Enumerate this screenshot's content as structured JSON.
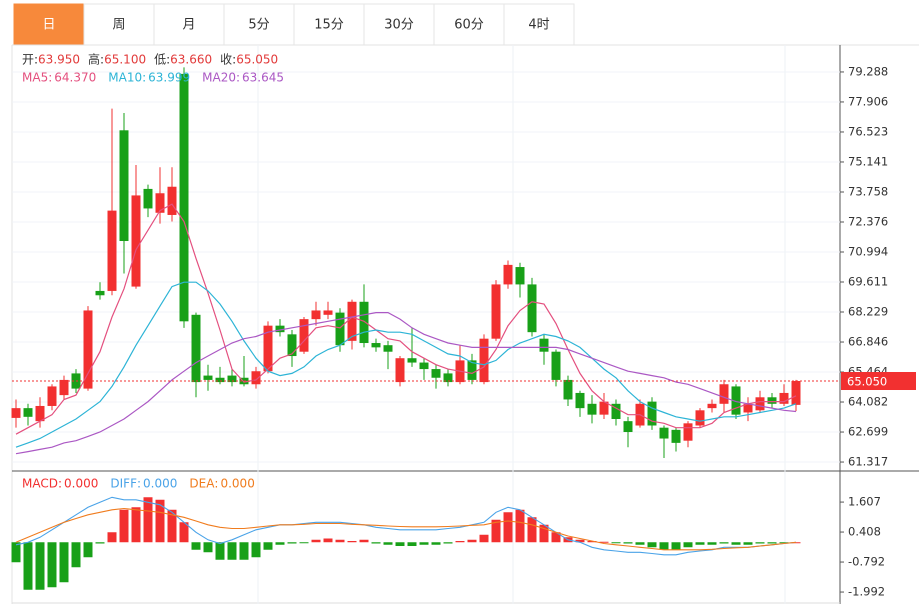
{
  "tabs": [
    "日",
    "周",
    "月",
    "5分",
    "15分",
    "30分",
    "60分",
    "4时"
  ],
  "chart_data": {
    "type": "candlestick",
    "header": [
      {
        "label": "开:",
        "value": "63.950"
      },
      {
        "label": "高:",
        "value": "65.100"
      },
      {
        "label": "低:",
        "value": "63.660"
      },
      {
        "label": "收:",
        "value": "65.050"
      }
    ],
    "up_color": "#f23030",
    "down_color": "#18a018",
    "open": [
      63.35,
      63.8,
      63.2,
      63.9,
      64.4,
      65.4,
      64.7,
      69.2,
      69.2,
      76.6,
      69.4,
      73.9,
      72.8,
      72.7,
      79.2,
      68.1,
      65.3,
      65.2,
      65.3,
      65.2,
      64.9,
      65.5,
      67.6,
      67.2,
      66.4,
      67.9,
      68.1,
      68.2,
      66.9,
      68.7,
      66.8,
      66.7,
      65.0,
      66.1,
      65.9,
      65.6,
      65.4,
      65.0,
      66.0,
      65.0,
      67.0,
      69.5,
      70.3,
      69.5,
      67.0,
      66.4,
      65.1,
      64.5,
      64.0,
      63.5,
      64.0,
      63.2,
      63.0,
      64.1,
      62.9,
      62.8,
      62.3,
      63.0,
      63.8,
      64.0,
      64.8,
      63.6,
      63.7,
      64.3,
      64.0,
      63.95
    ],
    "high": [
      64.2,
      64.0,
      64.3,
      64.9,
      65.3,
      65.6,
      68.5,
      69.6,
      77.6,
      77.4,
      75.0,
      74.1,
      74.9,
      74.9,
      79.5,
      68.2,
      65.8,
      65.7,
      65.6,
      66.2,
      65.7,
      67.8,
      67.9,
      67.4,
      68.0,
      68.7,
      68.7,
      68.4,
      68.8,
      69.5,
      67.0,
      66.9,
      66.2,
      67.5,
      66.1,
      65.8,
      65.6,
      66.7,
      66.3,
      67.2,
      69.7,
      70.6,
      70.5,
      69.8,
      67.2,
      66.5,
      65.3,
      64.6,
      64.4,
      64.5,
      64.2,
      63.4,
      64.2,
      64.3,
      63.0,
      62.9,
      63.2,
      63.8,
      64.2,
      65.1,
      64.9,
      64.3,
      64.6,
      64.5,
      64.9,
      65.1
    ],
    "low": [
      62.9,
      63.0,
      62.9,
      63.7,
      64.2,
      64.5,
      64.6,
      68.8,
      69.0,
      70.0,
      69.3,
      72.6,
      72.3,
      72.4,
      67.5,
      64.3,
      64.6,
      64.9,
      64.8,
      64.8,
      64.7,
      65.4,
      67.1,
      65.7,
      66.3,
      67.6,
      67.9,
      66.4,
      66.5,
      66.6,
      66.4,
      65.6,
      64.8,
      65.7,
      65.1,
      64.7,
      64.8,
      64.9,
      64.9,
      64.9,
      66.9,
      69.3,
      68.9,
      67.1,
      65.8,
      64.8,
      63.9,
      63.4,
      63.1,
      63.3,
      63.0,
      62.0,
      62.9,
      62.8,
      61.5,
      61.8,
      62.0,
      62.9,
      63.6,
      63.6,
      63.3,
      63.2,
      63.6,
      63.8,
      63.9,
      63.66
    ],
    "close": [
      63.8,
      63.4,
      63.9,
      64.8,
      65.1,
      64.7,
      68.3,
      69.0,
      72.9,
      71.5,
      73.6,
      73.0,
      73.7,
      74.0,
      67.8,
      65.0,
      65.1,
      65.0,
      65.0,
      64.9,
      65.5,
      67.6,
      67.3,
      66.2,
      67.9,
      68.3,
      68.3,
      66.7,
      68.7,
      66.8,
      66.6,
      66.4,
      66.1,
      65.9,
      65.6,
      65.2,
      65.0,
      66.0,
      65.1,
      67.0,
      69.5,
      70.4,
      69.5,
      67.3,
      66.4,
      65.1,
      64.2,
      63.8,
      63.5,
      64.1,
      63.3,
      62.7,
      64.0,
      63.0,
      62.4,
      62.2,
      63.1,
      63.7,
      64.0,
      64.9,
      63.5,
      64.0,
      64.3,
      64.0,
      64.5,
      65.05
    ],
    "ma": [
      {
        "name": "MA5",
        "legend_label": "64.370",
        "color": "#e4507f",
        "values": [
          62.6,
          62.9,
          63.2,
          63.5,
          64.2,
          64.4,
          65.4,
          66.4,
          68.0,
          69.3,
          71.1,
          72.0,
          72.9,
          73.2,
          72.4,
          70.7,
          69.1,
          67.4,
          65.6,
          65.0,
          65.1,
          65.6,
          66.1,
          66.3,
          66.9,
          67.5,
          67.6,
          67.5,
          68.0,
          67.8,
          67.4,
          67.0,
          66.9,
          66.4,
          66.1,
          65.8,
          65.6,
          65.5,
          65.4,
          65.7,
          66.5,
          67.6,
          68.3,
          68.7,
          68.6,
          67.7,
          66.5,
          65.4,
          64.6,
          64.1,
          63.8,
          63.5,
          63.5,
          63.2,
          63.1,
          62.9,
          62.9,
          62.9,
          63.1,
          63.6,
          63.8,
          64.0,
          64.1,
          64.1,
          64.1,
          64.37
        ]
      },
      {
        "name": "MA10",
        "legend_label": "63.999",
        "color": "#2db4d6",
        "values": [
          62.0,
          62.2,
          62.4,
          62.7,
          63.0,
          63.3,
          63.7,
          64.1,
          64.8,
          65.7,
          66.7,
          67.6,
          68.5,
          69.4,
          69.6,
          69.6,
          69.2,
          68.6,
          67.8,
          66.9,
          66.1,
          65.5,
          65.3,
          65.4,
          65.7,
          66.2,
          66.5,
          66.7,
          67.1,
          67.3,
          67.4,
          67.3,
          67.3,
          67.2,
          66.9,
          66.6,
          66.3,
          66.2,
          65.9,
          65.8,
          66.0,
          66.5,
          66.8,
          67.0,
          67.2,
          67.1,
          66.9,
          66.6,
          66.1,
          65.6,
          65.2,
          64.6,
          64.1,
          63.8,
          63.6,
          63.4,
          63.3,
          63.2,
          63.3,
          63.4,
          63.4,
          63.5,
          63.6,
          63.7,
          63.8,
          63.999
        ]
      },
      {
        "name": "MA20",
        "legend_label": "63.645",
        "color": "#ab58c4",
        "values": [
          61.7,
          61.8,
          61.9,
          62.0,
          62.2,
          62.3,
          62.5,
          62.7,
          63.0,
          63.3,
          63.7,
          64.1,
          64.6,
          65.1,
          65.5,
          65.9,
          66.2,
          66.5,
          66.8,
          67.0,
          67.1,
          67.3,
          67.4,
          67.5,
          67.6,
          67.7,
          67.8,
          67.9,
          68.0,
          68.1,
          68.2,
          68.2,
          67.9,
          67.5,
          67.2,
          67.0,
          66.8,
          66.7,
          66.6,
          66.6,
          66.6,
          66.6,
          66.6,
          66.6,
          66.6,
          66.6,
          66.5,
          66.3,
          66.1,
          65.9,
          65.7,
          65.5,
          65.4,
          65.3,
          65.2,
          65.0,
          64.9,
          64.7,
          64.5,
          64.3,
          64.1,
          64.0,
          63.9,
          63.8,
          63.7,
          63.645
        ]
      }
    ],
    "ylim": [
      60.95,
      80.53
    ],
    "yticks": [
      79.288,
      77.906,
      76.523,
      75.141,
      73.758,
      72.376,
      70.994,
      69.611,
      68.229,
      66.846,
      65.464,
      64.082,
      62.699,
      61.317
    ],
    "last": {
      "value": 65.05,
      "label": "65.050"
    },
    "macd": {
      "y2lim": [
        -2.47,
        2.69
      ],
      "y2ticks": [
        1.607,
        0.408,
        -0.792,
        -1.992
      ],
      "series": [
        {
          "name": "MACD",
          "legend_label": "0.000",
          "color": "#f23030",
          "values": [
            -0.8,
            -1.9,
            -1.9,
            -1.8,
            -1.6,
            -1.0,
            -0.6,
            -0.05,
            0.4,
            1.3,
            1.4,
            1.8,
            1.7,
            1.3,
            0.8,
            -0.3,
            -0.4,
            -0.7,
            -0.7,
            -0.7,
            -0.6,
            -0.3,
            -0.1,
            -0.05,
            -0.02,
            0.1,
            0.15,
            0.1,
            0.05,
            0.1,
            -0.05,
            -0.1,
            -0.15,
            -0.15,
            -0.1,
            -0.1,
            -0.05,
            0.05,
            0.1,
            0.3,
            0.9,
            1.2,
            1.3,
            1.0,
            0.7,
            0.4,
            0.2,
            0.1,
            0.05,
            0.02,
            -0.02,
            -0.05,
            -0.1,
            -0.2,
            -0.3,
            -0.3,
            -0.2,
            -0.1,
            -0.1,
            -0.05,
            -0.1,
            -0.1,
            -0.05,
            -0.05,
            -0.03,
            0.0
          ]
        },
        {
          "name": "DIFF",
          "legend_label": "0.000",
          "color": "#4aa3e8",
          "values": [
            -0.1,
            0.0,
            0.2,
            0.5,
            0.8,
            1.1,
            1.4,
            1.6,
            1.8,
            1.7,
            1.7,
            1.6,
            1.5,
            1.2,
            0.8,
            0.4,
            0.1,
            -0.05,
            0.1,
            0.3,
            0.5,
            0.6,
            0.7,
            0.7,
            0.75,
            0.8,
            0.8,
            0.8,
            0.75,
            0.7,
            0.6,
            0.55,
            0.5,
            0.5,
            0.5,
            0.5,
            0.55,
            0.6,
            0.7,
            0.8,
            1.2,
            1.4,
            1.3,
            1.0,
            0.7,
            0.4,
            0.1,
            0.0,
            -0.2,
            -0.3,
            -0.35,
            -0.4,
            -0.4,
            -0.45,
            -0.5,
            -0.5,
            -0.4,
            -0.35,
            -0.3,
            -0.2,
            -0.2,
            -0.2,
            -0.15,
            -0.1,
            -0.05,
            0.0
          ]
        },
        {
          "name": "DEA",
          "legend_label": "0.000",
          "color": "#f07c1e",
          "values": [
            0.0,
            0.2,
            0.4,
            0.6,
            0.8,
            0.95,
            1.1,
            1.2,
            1.3,
            1.35,
            1.3,
            1.25,
            1.2,
            1.1,
            1.0,
            0.85,
            0.7,
            0.6,
            0.55,
            0.55,
            0.6,
            0.65,
            0.7,
            0.7,
            0.72,
            0.75,
            0.75,
            0.75,
            0.72,
            0.7,
            0.68,
            0.65,
            0.63,
            0.62,
            0.62,
            0.62,
            0.63,
            0.65,
            0.68,
            0.7,
            0.8,
            0.85,
            0.8,
            0.7,
            0.55,
            0.4,
            0.25,
            0.15,
            0.05,
            -0.05,
            -0.1,
            -0.15,
            -0.2,
            -0.25,
            -0.3,
            -0.3,
            -0.3,
            -0.3,
            -0.28,
            -0.25,
            -0.22,
            -0.2,
            -0.15,
            -0.1,
            -0.05,
            0.0
          ]
        }
      ]
    }
  }
}
